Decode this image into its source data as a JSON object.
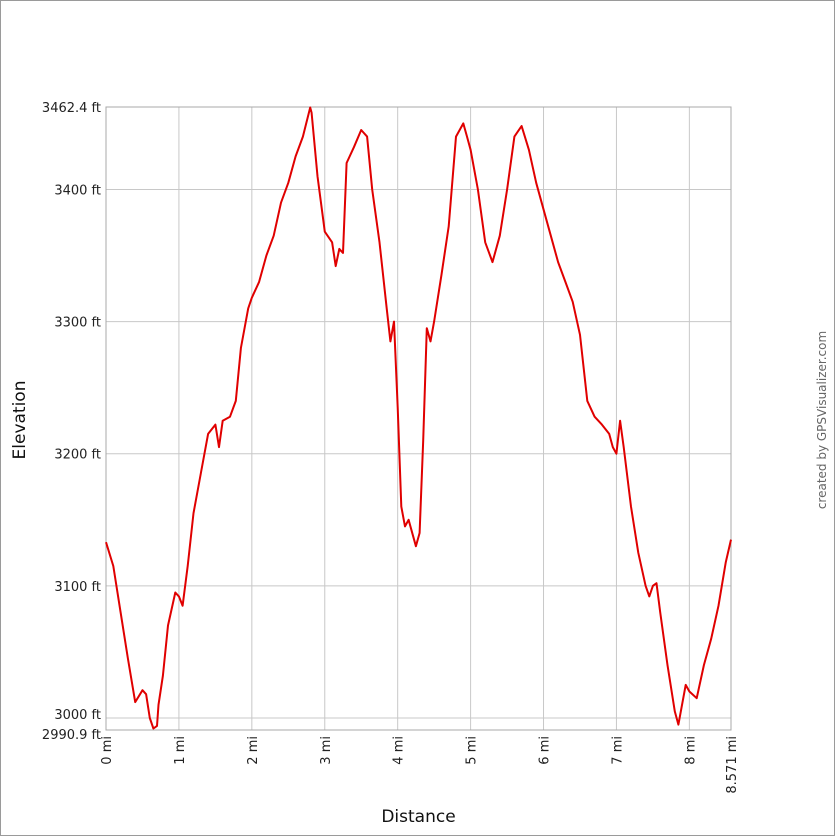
{
  "chart_data": {
    "type": "line",
    "xlabel": "Distance",
    "ylabel": "Elevation",
    "credit": "created by GPSVisualizer.com",
    "xlim": [
      0,
      8.571
    ],
    "ylim": [
      2990.9,
      3462.4
    ],
    "x_ticks": [
      {
        "value": 0,
        "label": "0 mi"
      },
      {
        "value": 1,
        "label": "1 mi"
      },
      {
        "value": 2,
        "label": "2 mi"
      },
      {
        "value": 3,
        "label": "3 mi"
      },
      {
        "value": 4,
        "label": "4 mi"
      },
      {
        "value": 5,
        "label": "5 mi"
      },
      {
        "value": 6,
        "label": "6 mi"
      },
      {
        "value": 7,
        "label": "7 mi"
      },
      {
        "value": 8,
        "label": "8 mi"
      },
      {
        "value": 8.571,
        "label": "8.571 mi"
      }
    ],
    "y_ticks": [
      {
        "value": 2990.9,
        "label": "2990.9 ft"
      },
      {
        "value": 3000,
        "label": "3000 ft"
      },
      {
        "value": 3100,
        "label": "3100 ft"
      },
      {
        "value": 3200,
        "label": "3200 ft"
      },
      {
        "value": 3300,
        "label": "3300 ft"
      },
      {
        "value": 3400,
        "label": "3400 ft"
      },
      {
        "value": 3462.4,
        "label": "3462.4 ft"
      }
    ],
    "grid": true,
    "line_color": "#e00000",
    "series": [
      {
        "x": [
          0,
          0.1,
          0.2,
          0.3,
          0.4,
          0.5,
          0.55,
          0.6,
          0.65,
          0.7,
          0.72,
          0.78,
          0.85,
          0.95,
          1.0,
          1.05,
          1.12,
          1.2,
          1.3,
          1.4,
          1.5,
          1.55,
          1.6,
          1.7,
          1.78,
          1.85,
          1.95,
          2.0,
          2.1,
          2.2,
          2.3,
          2.4,
          2.5,
          2.6,
          2.7,
          2.8,
          2.82,
          2.9,
          3.0,
          3.1,
          3.15,
          3.2,
          3.25,
          3.3,
          3.4,
          3.5,
          3.58,
          3.65,
          3.75,
          3.85,
          3.9,
          3.95,
          4.0,
          4.05,
          4.1,
          4.15,
          4.25,
          4.3,
          4.35,
          4.4,
          4.45,
          4.5,
          4.6,
          4.7,
          4.8,
          4.9,
          4.95,
          5.0,
          5.1,
          5.2,
          5.3,
          5.4,
          5.5,
          5.6,
          5.7,
          5.8,
          5.9,
          6.0,
          6.1,
          6.2,
          6.3,
          6.4,
          6.5,
          6.6,
          6.7,
          6.8,
          6.9,
          6.95,
          7.0,
          7.05,
          7.1,
          7.2,
          7.3,
          7.4,
          7.45,
          7.5,
          7.55,
          7.6,
          7.7,
          7.8,
          7.85,
          7.95,
          8.0,
          8.1,
          8.2,
          8.3,
          8.4,
          8.5,
          8.571
        ],
        "y": [
          3133,
          3115,
          3080,
          3045,
          3012,
          3021,
          3018,
          3000,
          2992,
          2994,
          3010,
          3032,
          3070,
          3095,
          3092,
          3085,
          3115,
          3155,
          3185,
          3215,
          3222,
          3205,
          3225,
          3228,
          3240,
          3280,
          3310,
          3318,
          3330,
          3350,
          3365,
          3390,
          3405,
          3425,
          3440,
          3462,
          3458,
          3410,
          3368,
          3360,
          3342,
          3355,
          3352,
          3420,
          3432,
          3445,
          3440,
          3400,
          3360,
          3310,
          3285,
          3300,
          3235,
          3160,
          3145,
          3150,
          3130,
          3140,
          3210,
          3295,
          3285,
          3300,
          3335,
          3372,
          3440,
          3450,
          3440,
          3430,
          3400,
          3360,
          3345,
          3365,
          3400,
          3440,
          3448,
          3430,
          3405,
          3385,
          3365,
          3345,
          3330,
          3315,
          3290,
          3240,
          3228,
          3222,
          3215,
          3205,
          3200,
          3225,
          3205,
          3160,
          3125,
          3100,
          3092,
          3100,
          3102,
          3080,
          3040,
          3005,
          2995,
          3025,
          3020,
          3015,
          3040,
          3060,
          3085,
          3118,
          3135
        ]
      }
    ]
  }
}
